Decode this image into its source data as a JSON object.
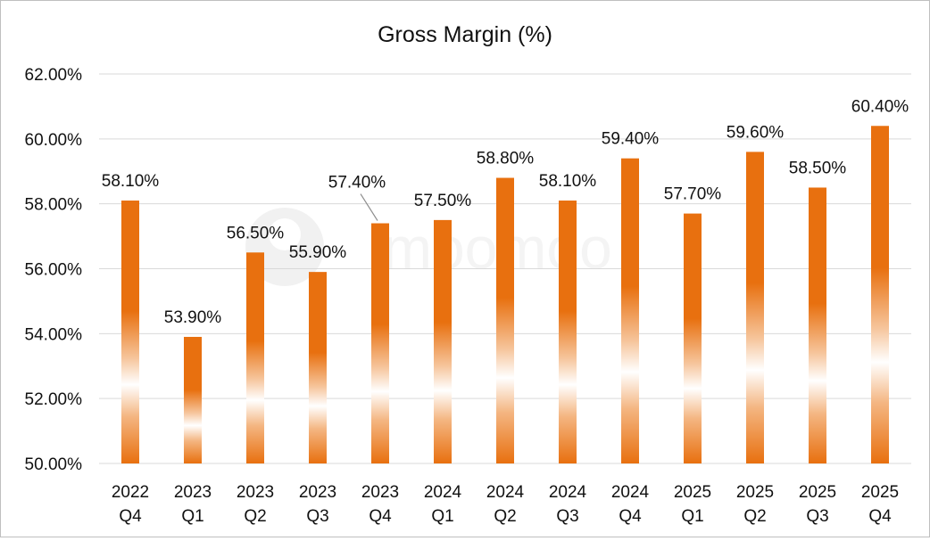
{
  "chart_data": {
    "type": "bar",
    "title": "Gross Margin (%)",
    "xlabel": "",
    "ylabel": "",
    "ylim": [
      50,
      62
    ],
    "yticks": [
      50,
      52,
      54,
      56,
      58,
      60,
      62
    ],
    "ytick_labels": [
      "50.00%",
      "52.00%",
      "54.00%",
      "56.00%",
      "58.00%",
      "60.00%",
      "62.00%"
    ],
    "grid": true,
    "legend": "none",
    "categories": [
      {
        "year": "2022",
        "quarter": "Q4"
      },
      {
        "year": "2023",
        "quarter": "Q1"
      },
      {
        "year": "2023",
        "quarter": "Q2"
      },
      {
        "year": "2023",
        "quarter": "Q3"
      },
      {
        "year": "2023",
        "quarter": "Q4"
      },
      {
        "year": "2024",
        "quarter": "Q1"
      },
      {
        "year": "2024",
        "quarter": "Q2"
      },
      {
        "year": "2024",
        "quarter": "Q3"
      },
      {
        "year": "2024",
        "quarter": "Q4"
      },
      {
        "year": "2025",
        "quarter": "Q1"
      },
      {
        "year": "2025",
        "quarter": "Q2"
      },
      {
        "year": "2025",
        "quarter": "Q3"
      },
      {
        "year": "2025",
        "quarter": "Q4"
      }
    ],
    "values": [
      58.1,
      53.9,
      56.5,
      55.9,
      57.4,
      57.5,
      58.8,
      58.1,
      59.4,
      57.7,
      59.6,
      58.5,
      60.4
    ],
    "data_labels": [
      "58.10%",
      "53.90%",
      "56.50%",
      "55.90%",
      "57.40%",
      "57.50%",
      "58.80%",
      "58.10%",
      "59.40%",
      "57.70%",
      "59.60%",
      "58.50%",
      "60.40%"
    ],
    "bar_color": "#E8700F",
    "watermark": "moomoo"
  }
}
